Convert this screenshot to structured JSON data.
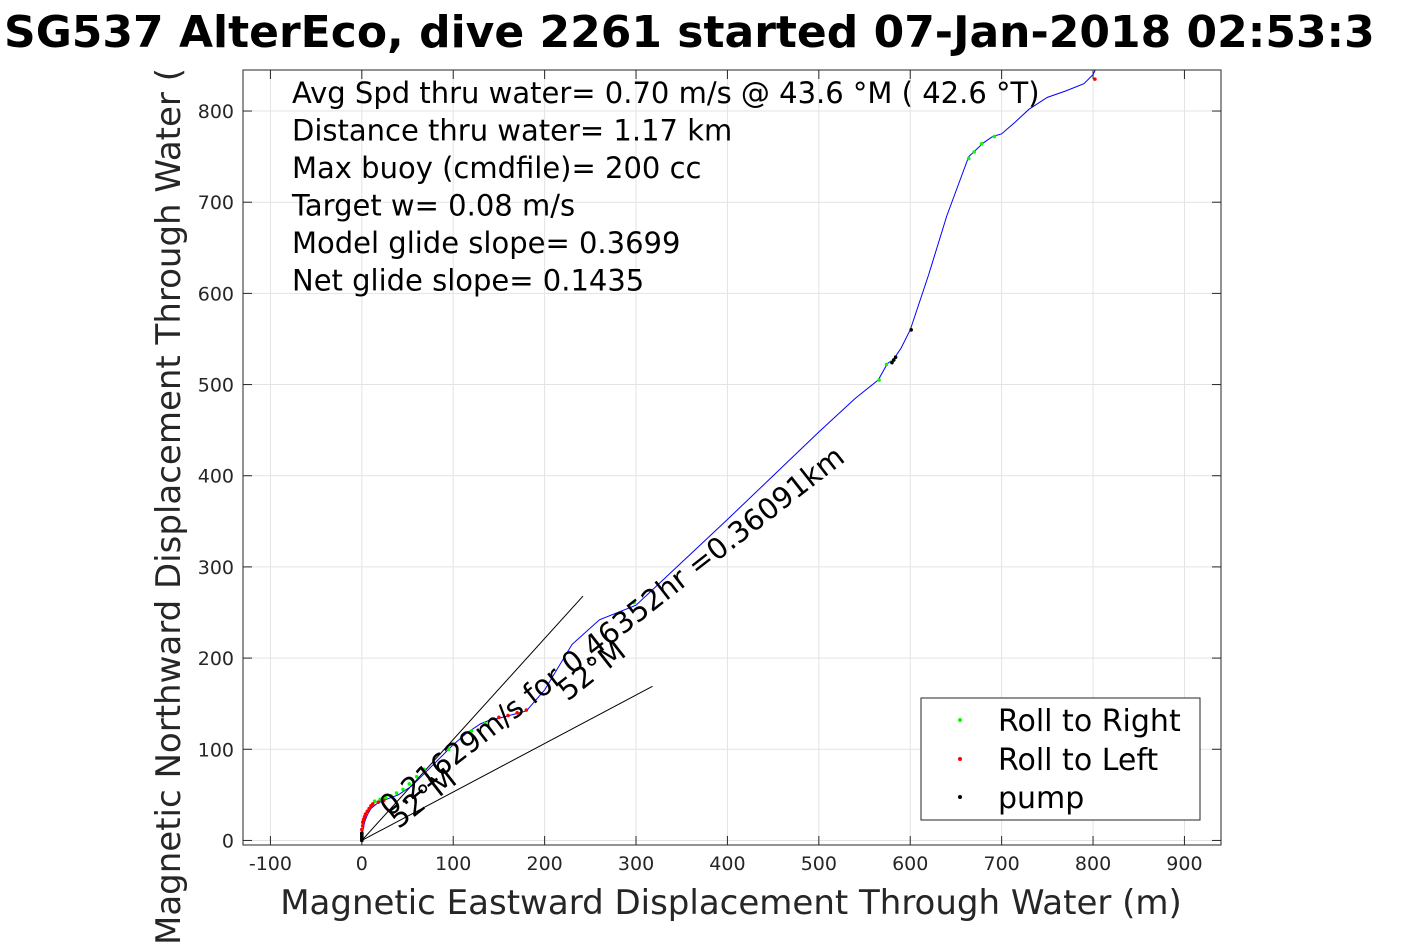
{
  "chart_data": {
    "type": "line",
    "title": "SG537 AlterEco, dive 2261 started 07-Jan-2018 02:53:3",
    "xlabel": "Magnetic Eastward Displacement Through Water (m)",
    "ylabel": "Magnetic Northward Displacement Through Water (",
    "xlim": [
      -130,
      940
    ],
    "ylim": [
      -5,
      845
    ],
    "xticks": [
      -100,
      0,
      100,
      200,
      300,
      400,
      500,
      600,
      700,
      800,
      900
    ],
    "yticks": [
      0,
      100,
      200,
      300,
      400,
      500,
      600,
      700,
      800
    ],
    "grid": true,
    "info_lines": [
      "Avg Spd thru water=  0.70 m/s @  43.6 °M ( 42.6 °T)",
      "Distance thru water=  1.17 km",
      "Max buoy (cmdfile)= 200 cc",
      "Target w= 0.08 m/s",
      "Model glide slope= 0.3699",
      "Net glide slope= 0.1435"
    ],
    "track": {
      "color": "#0000ff",
      "x": [
        0,
        1,
        3,
        6,
        10,
        16,
        24,
        32,
        40,
        55,
        70,
        85,
        100,
        115,
        130,
        140,
        150,
        165,
        180,
        200,
        230,
        260,
        300,
        350,
        400,
        450,
        500,
        540,
        565,
        575,
        582,
        590,
        600,
        620,
        640,
        664,
        680,
        690,
        700,
        715,
        730,
        750,
        770,
        790,
        800,
        805
      ],
      "y": [
        0,
        10,
        20,
        28,
        35,
        40,
        44,
        47,
        50,
        60,
        75,
        90,
        105,
        118,
        128,
        132,
        134,
        138,
        142,
        165,
        215,
        242,
        258,
        305,
        352,
        400,
        448,
        485,
        505,
        523,
        528,
        540,
        560,
        620,
        685,
        750,
        765,
        772,
        775,
        788,
        802,
        815,
        822,
        830,
        840,
        850
      ]
    },
    "wedge_lines": {
      "color": "#000000",
      "lines": [
        {
          "x": [
            0,
            242
          ],
          "y": [
            0,
            268
          ]
        },
        {
          "x": [
            0,
            318
          ],
          "y": [
            0,
            169
          ]
        }
      ]
    },
    "annotations": [
      {
        "text": "0.21629m/s for 0.46352hr =0.36091km",
        "x": 30,
        "y": 25,
        "angle_deg": 38
      },
      {
        "text": "52°M",
        "x": 40,
        "y": 12,
        "angle_deg": 38
      },
      {
        "text": "52°M",
        "x": 225,
        "y": 152,
        "angle_deg": 38
      }
    ],
    "series": [
      {
        "name": "Roll to Right",
        "color": "#00ff00",
        "x": [
          14,
          20,
          26,
          32,
          38,
          45,
          52,
          60,
          68,
          95,
          120,
          135,
          298,
          566,
          574,
          580,
          664,
          670,
          678,
          692
        ],
        "y": [
          43,
          45,
          47,
          49,
          52,
          56,
          62,
          70,
          78,
          100,
          120,
          128,
          261,
          505,
          522,
          525,
          748,
          755,
          764,
          772
        ]
      },
      {
        "name": "Roll to Left",
        "color": "#ff0000",
        "x": [
          0,
          0,
          0,
          1,
          1,
          2,
          3,
          4,
          6,
          8,
          10,
          12,
          18,
          24,
          150,
          160,
          170,
          180,
          802
        ],
        "y": [
          4,
          8,
          12,
          16,
          20,
          23,
          26,
          29,
          32,
          35,
          38,
          40,
          42,
          44,
          135,
          137,
          140,
          143,
          835
        ]
      },
      {
        "name": "pump",
        "color": "#000000",
        "x": [
          0,
          0,
          0,
          0,
          0,
          580,
          582,
          584,
          601
        ],
        "y": [
          0,
          2,
          4,
          6,
          8,
          524,
          527,
          530,
          560
        ]
      }
    ],
    "legend": {
      "placement": "bottom-right",
      "entries": [
        "Roll to Right",
        "Roll to Left",
        "pump"
      ]
    }
  }
}
